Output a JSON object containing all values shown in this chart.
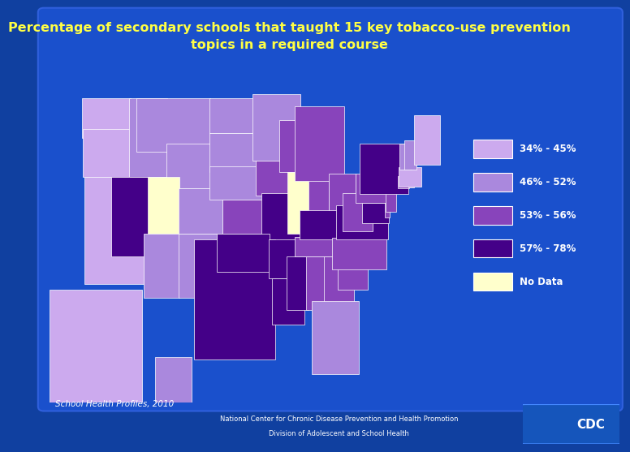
{
  "title_line1": "Percentage of secondary schools that taught 15 key tobacco-use prevention",
  "title_line2": "topics in a required course",
  "title_color": "#FFFF44",
  "title_fontsize": 11.5,
  "bg_color": "#1040a0",
  "legend_labels": [
    "34% - 45%",
    "46% - 52%",
    "53% - 56%",
    "57% - 78%",
    "No Data"
  ],
  "legend_colors": [
    "#ccaaee",
    "#aa88dd",
    "#8844bb",
    "#440088",
    "#ffffcc"
  ],
  "footer_text1": "National Center for Chronic Disease Prevention and Health Promotion",
  "footer_text2": "Division of Adolescent and School Health",
  "footer_bg": "#808000",
  "source_text": "School Health Profiles, 2010",
  "source_color": "#FFFFFF",
  "state_colors": {
    "WA": "#ccaaee",
    "OR": "#ccaaee",
    "CA": "#ccaaee",
    "ID": "#aa88dd",
    "MT": "#aa88dd",
    "WY": "#aa88dd",
    "NV": "#440088",
    "UT": "#ffffcc",
    "AZ": "#aa88dd",
    "CO": "#aa88dd",
    "NM": "#aa88dd",
    "ND": "#aa88dd",
    "SD": "#aa88dd",
    "NE": "#aa88dd",
    "KS": "#8844bb",
    "MN": "#aa88dd",
    "IA": "#8844bb",
    "MO": "#440088",
    "WI": "#8844bb",
    "IL": "#ffffcc",
    "IN": "#8844bb",
    "MI": "#8844bb",
    "OH": "#8844bb",
    "TX": "#440088",
    "OK": "#440088",
    "AR": "#440088",
    "LA": "#440088",
    "MS": "#440088",
    "AL": "#8844bb",
    "TN": "#8844bb",
    "KY": "#440088",
    "GA": "#8844bb",
    "FL": "#aa88dd",
    "SC": "#8844bb",
    "NC": "#8844bb",
    "VA": "#440088",
    "WV": "#8844bb",
    "MD": "#440088",
    "DE": "#8844bb",
    "PA": "#8844bb",
    "NJ": "#8844bb",
    "NY": "#440088",
    "CT": "#8844bb",
    "RI": "#8844bb",
    "MA": "#ccaaee",
    "VT": "#aa88dd",
    "NH": "#aa88dd",
    "ME": "#ccaaee",
    "AK": "#ccaaee",
    "HI": "#aa88dd",
    "DC": "#440088"
  }
}
